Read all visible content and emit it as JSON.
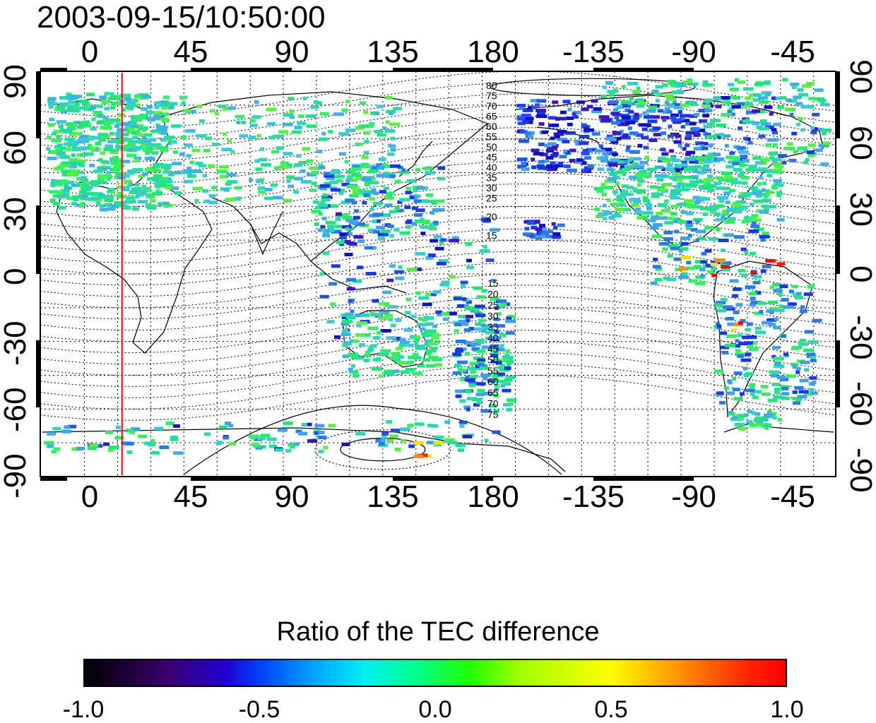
{
  "title": "2003-09-15/10:50:00",
  "x_ticks": [
    "0",
    "45",
    "90",
    "135",
    "180",
    "-135",
    "-90",
    "-45"
  ],
  "y_ticks": [
    "90",
    "60",
    "30",
    "0",
    "-30",
    "-60",
    "-90"
  ],
  "map": {
    "lon_range": [
      -20,
      340
    ],
    "lat_range": [
      -90,
      90
    ],
    "marker_longitude": 17,
    "marker_color": "#ff0000",
    "graticule_step_deg": 15
  },
  "contour_labels": {
    "north": [
      "80",
      "75",
      "70",
      "65",
      "60",
      "55",
      "50",
      "45",
      "40",
      "35",
      "30",
      "25",
      "20",
      "15"
    ],
    "south": [
      "15",
      "20",
      "25",
      "30",
      "35",
      "40",
      "45",
      "50",
      "55",
      "60",
      "65",
      "70",
      "75"
    ]
  },
  "colorbar": {
    "title": "Ratio of the TEC difference",
    "range": [
      -1.0,
      1.0
    ],
    "tick_labels": [
      "-1.0",
      "-0.5",
      "0.0",
      "0.5",
      "1.0"
    ]
  }
}
